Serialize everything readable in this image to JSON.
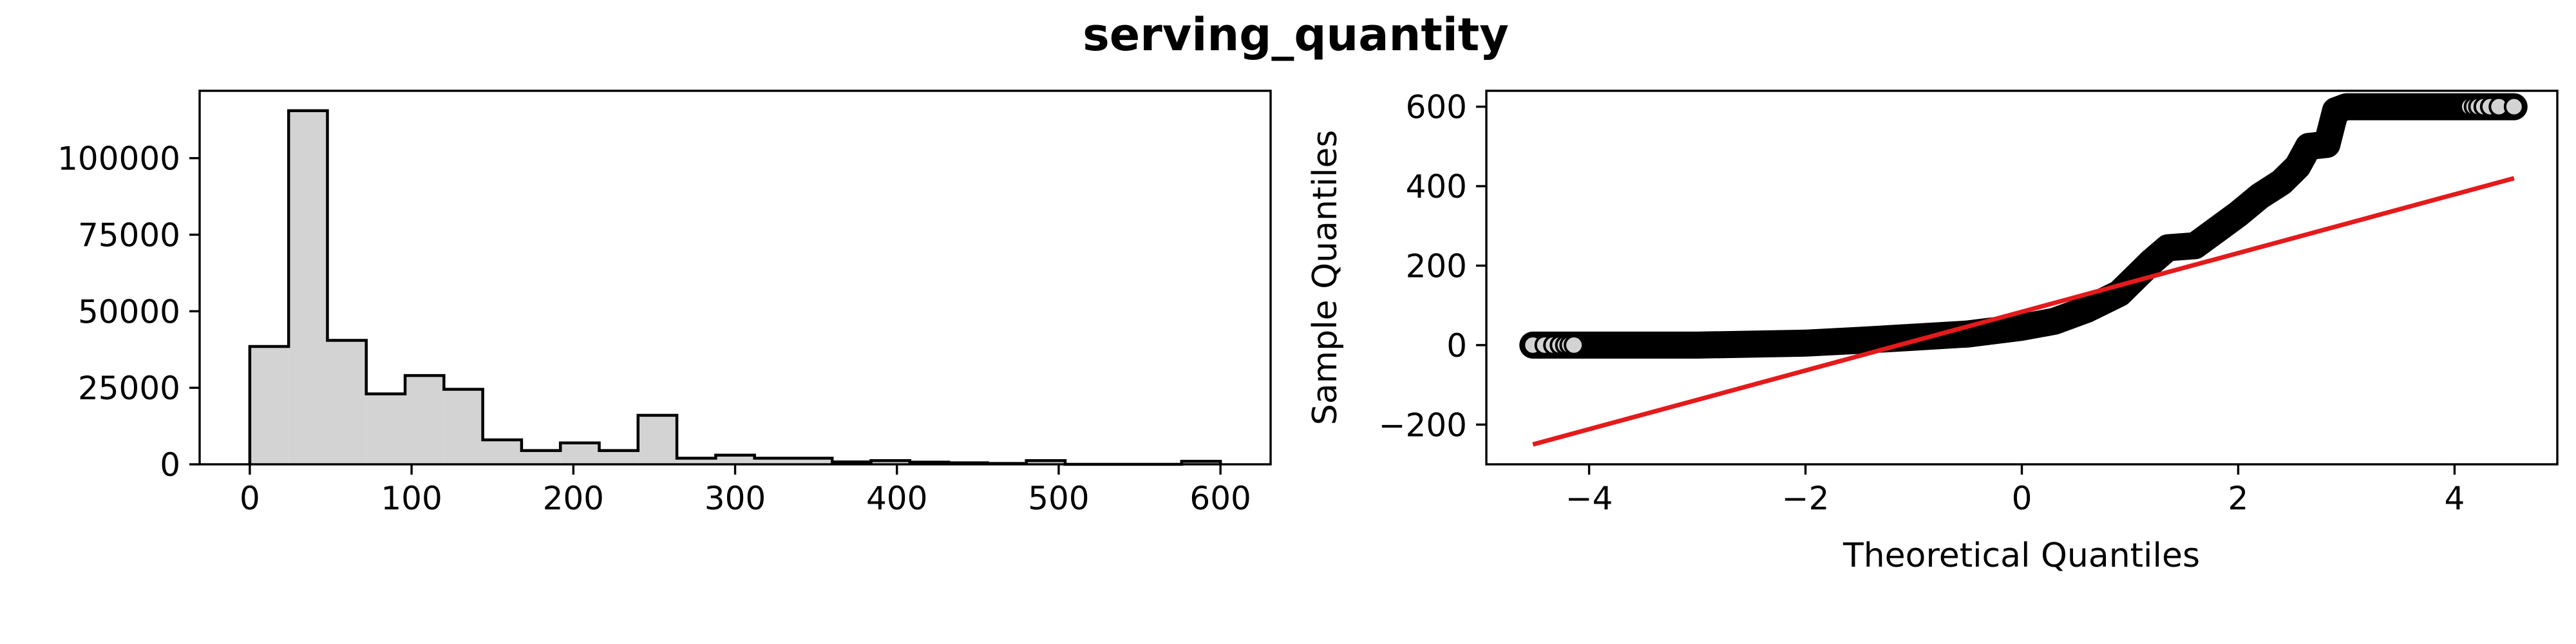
{
  "title": "serving_quantity",
  "chart_data": [
    {
      "type": "histogram",
      "xlabel": "",
      "ylabel": "",
      "xlim": [
        -31,
        631
      ],
      "ylim": [
        0,
        122000
      ],
      "xticks": [
        0,
        100,
        200,
        300,
        400,
        500,
        600
      ],
      "yticks": [
        0,
        25000,
        50000,
        75000,
        100000
      ],
      "bin_edges": [
        0,
        24,
        48,
        72,
        96,
        120,
        144,
        168,
        192,
        216,
        240,
        264,
        288,
        312,
        336,
        360,
        384,
        408,
        432,
        456,
        480,
        504,
        528,
        552,
        576,
        600
      ],
      "counts": [
        38500,
        115500,
        40500,
        23000,
        29000,
        24500,
        8000,
        4500,
        7000,
        4500,
        16000,
        2000,
        3000,
        2000,
        2000,
        800,
        1200,
        700,
        500,
        300,
        1200,
        0,
        0,
        0,
        1000
      ],
      "fill_color": "#d3d3d3",
      "edge_color": "#000000",
      "grid": false
    },
    {
      "type": "scatter",
      "subtype": "qq-plot",
      "xlabel": "Theoretical Quantiles",
      "ylabel": "Sample Quantiles",
      "xlim": [
        -4.95,
        4.95
      ],
      "ylim": [
        -300,
        640
      ],
      "xticks": [
        -4,
        -2,
        0,
        2,
        4
      ],
      "yticks": [
        -200,
        0,
        200,
        400,
        600
      ],
      "sample_curve": [
        [
          -4.52,
          0
        ],
        [
          -4.2,
          0
        ],
        [
          -3.0,
          0
        ],
        [
          -2.0,
          5
        ],
        [
          -1.5,
          12
        ],
        [
          -1.0,
          20
        ],
        [
          -0.5,
          28
        ],
        [
          0.0,
          45
        ],
        [
          0.3,
          60
        ],
        [
          0.6,
          90
        ],
        [
          0.9,
          130
        ],
        [
          1.05,
          170
        ],
        [
          1.2,
          210
        ],
        [
          1.35,
          245
        ],
        [
          1.6,
          250
        ],
        [
          1.8,
          290
        ],
        [
          2.0,
          330
        ],
        [
          2.2,
          375
        ],
        [
          2.4,
          410
        ],
        [
          2.55,
          450
        ],
        [
          2.65,
          500
        ],
        [
          2.82,
          505
        ],
        [
          2.9,
          590
        ],
        [
          3.0,
          600
        ],
        [
          4.55,
          600
        ]
      ],
      "outlier_points": [
        [
          -4.52,
          0
        ],
        [
          -4.41,
          0
        ],
        [
          -4.33,
          0
        ],
        [
          -4.27,
          0
        ],
        [
          -4.22,
          0
        ],
        [
          -4.18,
          0
        ],
        [
          -4.14,
          0
        ],
        [
          4.14,
          600
        ],
        [
          4.18,
          600
        ],
        [
          4.22,
          600
        ],
        [
          4.27,
          600
        ],
        [
          4.33,
          600
        ],
        [
          4.41,
          600
        ],
        [
          4.55,
          600
        ]
      ],
      "reference_line": {
        "x": [
          -4.52,
          4.55
        ],
        "y": [
          -250,
          420
        ],
        "color": "#e41a1c"
      },
      "marker_fill": "#d3d3d3",
      "marker_edge": "#000000",
      "grid": false
    }
  ]
}
